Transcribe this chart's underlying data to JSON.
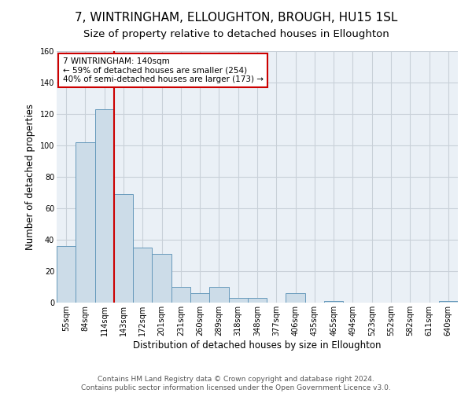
{
  "title": "7, WINTRINGHAM, ELLOUGHTON, BROUGH, HU15 1SL",
  "subtitle": "Size of property relative to detached houses in Elloughton",
  "xlabel": "Distribution of detached houses by size in Elloughton",
  "ylabel": "Number of detached properties",
  "categories": [
    "55sqm",
    "84sqm",
    "114sqm",
    "143sqm",
    "172sqm",
    "201sqm",
    "231sqm",
    "260sqm",
    "289sqm",
    "318sqm",
    "348sqm",
    "377sqm",
    "406sqm",
    "435sqm",
    "465sqm",
    "494sqm",
    "523sqm",
    "552sqm",
    "582sqm",
    "611sqm",
    "640sqm"
  ],
  "values": [
    36,
    102,
    123,
    69,
    35,
    31,
    10,
    6,
    10,
    3,
    3,
    0,
    6,
    0,
    1,
    0,
    0,
    0,
    0,
    0,
    1
  ],
  "bar_color": "#ccdce8",
  "bar_edge_color": "#6699bb",
  "marker_color": "#cc0000",
  "annotation_line1": "7 WINTRINGHAM: 140sqm",
  "annotation_line2": "← 59% of detached houses are smaller (254)",
  "annotation_line3": "40% of semi-detached houses are larger (173) →",
  "ylim": [
    0,
    160
  ],
  "yticks": [
    0,
    20,
    40,
    60,
    80,
    100,
    120,
    140,
    160
  ],
  "footer_line1": "Contains HM Land Registry data © Crown copyright and database right 2024.",
  "footer_line2": "Contains public sector information licensed under the Open Government Licence v3.0.",
  "background_color": "#ffffff",
  "plot_bg_color": "#eaf0f6",
  "grid_color": "#c8d0d8",
  "annotation_box_color": "#ffffff",
  "annotation_box_edge": "#cc0000",
  "title_fontsize": 11,
  "subtitle_fontsize": 9.5,
  "axis_label_fontsize": 8.5,
  "tick_fontsize": 7,
  "annotation_fontsize": 7.5,
  "footer_fontsize": 6.5
}
